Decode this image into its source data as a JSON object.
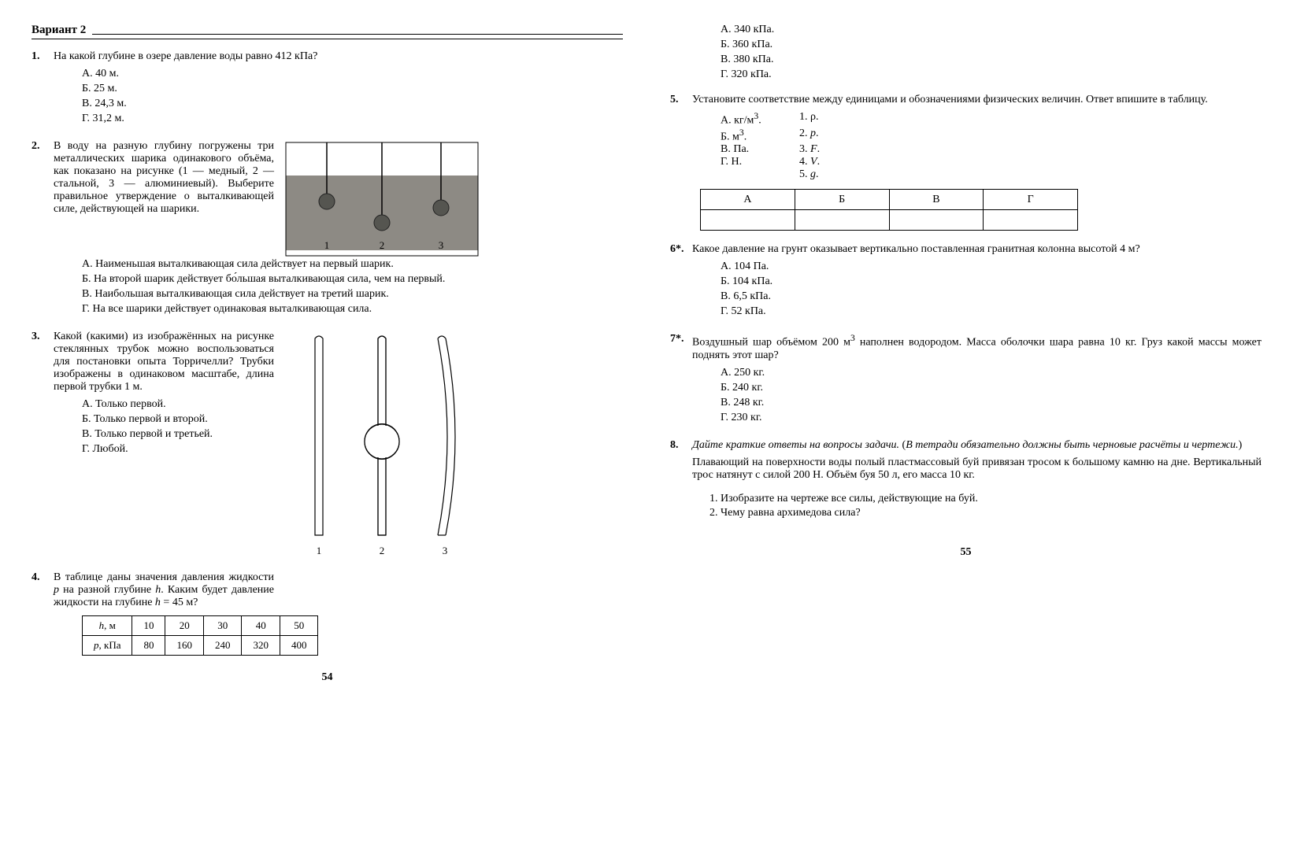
{
  "left_page_num": "54",
  "right_page_num": "55",
  "variant_label": "Вариант 2",
  "q1": {
    "num": "1.",
    "text": "На какой глубине в озере давление воды равно 412 кПа?",
    "A": "А. 40 м.",
    "B": "Б. 25 м.",
    "C": "В. 24,3 м.",
    "D": "Г. 31,2 м."
  },
  "q2": {
    "num": "2.",
    "text": "В воду на разную глубину погружены три металлических шарика одинакового объёма, как показано на рисунке (1 — медный, 2 — стальной, 3 — алюминиевый). Выберите правильное утверждение о выталкивающей силе, действующей на шарики.",
    "A": "А. Наименьшая выталкивающая сила действует на первый шарик.",
    "B": "Б. На второй шарик действует бо́льшая выталкивающая сила, чем на первый.",
    "C": "В. Наибольшая выталкивающая сила действует на третий шарик.",
    "D": "Г. На все шарики действует одинаковая выталкивающая сила.",
    "fig_labels": {
      "l1": "1",
      "l2": "2",
      "l3": "3"
    }
  },
  "q3": {
    "num": "3.",
    "text": "Какой (какими) из изображённых на рисунке стеклянных трубок можно воспользоваться для постановки опыта Торричелли? Трубки изображены в одинаковом масштабе, длина первой трубки 1 м.",
    "A": "А. Только первой.",
    "B": "Б. Только первой и второй.",
    "C": "В. Только первой и третьей.",
    "D": "Г. Любой.",
    "fig_labels": {
      "l1": "1",
      "l2": "2",
      "l3": "3"
    }
  },
  "q4": {
    "num": "4.",
    "text_html": "В таблице даны значения давления жидкости <i>p</i> на разной глубине <i>h</i>. Каким будет давление жидкости на глубине <i>h</i> = 45 м?",
    "h_label_html": "<i>h</i>, м",
    "p_label_html": "<i>p</i>, кПа",
    "h": [
      "10",
      "20",
      "30",
      "40",
      "50"
    ],
    "p": [
      "80",
      "160",
      "240",
      "320",
      "400"
    ],
    "A": "А. 340 кПа.",
    "B": "Б. 360 кПа.",
    "C": "В. 380 кПа.",
    "D": "Г. 320 кПа."
  },
  "q5": {
    "num": "5.",
    "text": "Установите соответствие между единицами и обозначениями физических величин. Ответ впишите в таблицу.",
    "left": {
      "A_html": "А. кг/м<sup>3</sup>.",
      "B_html": "Б. м<sup>3</sup>.",
      "C": "В. Па.",
      "D": "Г. Н."
    },
    "right": {
      "r1_html": "1. ρ.",
      "r2_html": "2. <i>p</i>.",
      "r3_html": "3. <i>F</i>.",
      "r4_html": "4. <i>V</i>.",
      "r5_html": "5. <i>g</i>."
    },
    "headers": {
      "A": "А",
      "B": "Б",
      "C": "В",
      "D": "Г"
    }
  },
  "q6": {
    "num": "6*.",
    "text": "Какое давление на грунт оказывает вертикально поставленная гранитная колонна высотой 4 м?",
    "A": "А. 104 Па.",
    "B": "Б. 104 кПа.",
    "C": "В. 6,5 кПа.",
    "D": "Г. 52 кПа."
  },
  "q7": {
    "num": "7*.",
    "text_html": "Воздушный шар объёмом 200 м<sup>3</sup> наполнен водородом. Масса оболочки шара равна 10 кг. Груз какой массы может поднять этот шар?",
    "A": "А. 250 кг.",
    "B": "Б. 240 кг.",
    "C": "В. 248 кг.",
    "D": "Г. 230 кг."
  },
  "q8": {
    "num": "8.",
    "prompt_html": "<i>Дайте краткие ответы на вопросы задачи.</i> (<i>В тетради обязательно должны быть черновые расчёты и чертежи.</i>)",
    "text": "Плавающий на поверхности воды полый пластмассовый буй привязан тросом к большому камню на дне. Вертикальный трос натянут с силой 200 Н. Объём буя 50 л, его масса 10 кг.",
    "sub1": "Изобразите на чертеже все силы, действующие на буй.",
    "sub2": "Чему равна архимедова сила?"
  },
  "colors": {
    "text": "#000000",
    "water": "#8d8a84",
    "vessel_border": "#000000",
    "ball": "#555550"
  }
}
